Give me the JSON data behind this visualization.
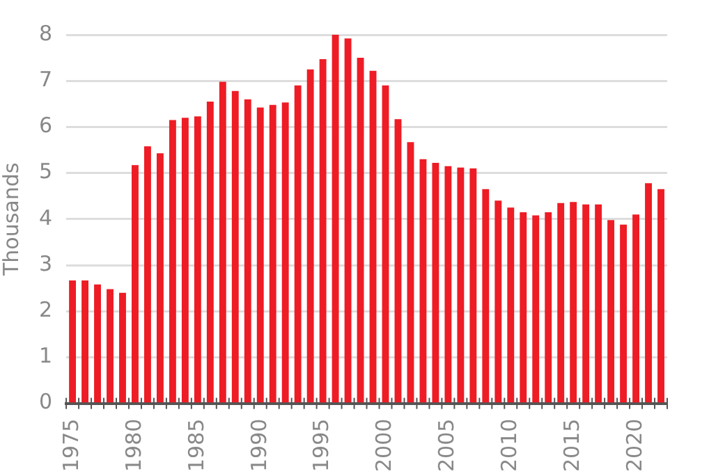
{
  "chart_data": {
    "type": "bar",
    "ylabel": "Thousands",
    "categories": [
      "1975",
      null,
      null,
      null,
      null,
      "1980",
      null,
      null,
      null,
      null,
      "1985",
      null,
      null,
      null,
      null,
      "1990",
      null,
      null,
      null,
      null,
      "1995",
      null,
      null,
      null,
      null,
      "2000",
      null,
      null,
      null,
      null,
      "2005",
      null,
      null,
      null,
      null,
      "2010",
      null,
      null,
      null,
      null,
      "2015",
      null,
      null,
      null,
      null,
      "2020",
      null,
      null
    ],
    "values": [
      2.67,
      2.67,
      2.58,
      2.48,
      2.4,
      5.17,
      5.58,
      5.43,
      6.15,
      6.2,
      6.23,
      6.55,
      6.98,
      6.78,
      6.6,
      6.42,
      6.48,
      6.53,
      6.9,
      7.25,
      7.47,
      8.0,
      7.92,
      7.5,
      7.22,
      6.9,
      6.17,
      5.67,
      5.3,
      5.22,
      5.15,
      5.12,
      5.1,
      4.65,
      4.4,
      4.25,
      4.15,
      4.08,
      4.15,
      4.35,
      4.37,
      4.32,
      4.32,
      3.98,
      3.88,
      4.1,
      4.78,
      4.65
    ],
    "color": "#ee1c25",
    "ylim": [
      0,
      8
    ],
    "yticks": [
      0,
      1,
      2,
      3,
      4,
      5,
      6,
      7,
      8
    ],
    "grid": "y",
    "legend": false
  }
}
